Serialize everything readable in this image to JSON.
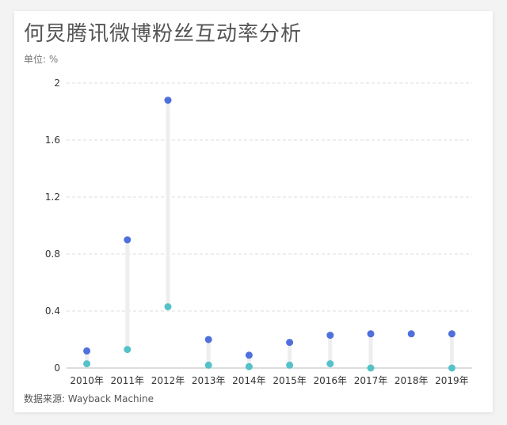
{
  "title": "何炅腾讯微博粉丝互动率分析",
  "unit_label": "单位: %",
  "source": "数据来源: Wayback Machine",
  "colors": {
    "upper": "#4f70dc",
    "lower": "#55c1c8"
  },
  "chart_data": {
    "type": "scatter",
    "subtype": "dumbbell",
    "categories": [
      "2010年",
      "2011年",
      "2012年",
      "2013年",
      "2014年",
      "2015年",
      "2016年",
      "2017年",
      "2018年",
      "2019年"
    ],
    "series": [
      {
        "values": [
          0.12,
          0.9,
          1.88,
          0.2,
          0.09,
          0.18,
          0.23,
          0.24,
          0.24,
          0.24
        ]
      },
      {
        "values": [
          0.03,
          0.13,
          0.43,
          0.02,
          0.01,
          0.02,
          0.03,
          0.0,
          null,
          0.0
        ]
      }
    ],
    "ylim": [
      0,
      2
    ],
    "yticks": [
      "0",
      "0.4",
      "0.8",
      "1.2",
      "1.6",
      "2"
    ],
    "grid": true
  }
}
